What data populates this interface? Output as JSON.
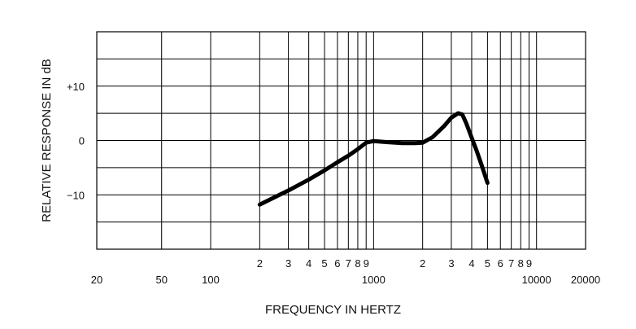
{
  "chart_data": {
    "type": "line",
    "title": "",
    "xlabel": "FREQUENCY IN HERTZ",
    "ylabel": "RELATIVE RESPONSE IN dB",
    "x_scale": "log",
    "xlim": [
      20,
      20000
    ],
    "ylim": [
      -20,
      20
    ],
    "grid": true,
    "x_grid_lines": [
      50,
      100,
      200,
      300,
      400,
      500,
      600,
      700,
      800,
      900,
      1000,
      2000,
      3000,
      4000,
      5000,
      6000,
      7000,
      8000,
      9000,
      10000
    ],
    "y_grid_lines": [
      -15,
      -10,
      -5,
      0,
      5,
      10,
      15
    ],
    "x_ticks_major": [
      {
        "value": 20,
        "label": "20"
      },
      {
        "value": 50,
        "label": "50"
      },
      {
        "value": 100,
        "label": "100"
      },
      {
        "value": 1000,
        "label": "1000"
      },
      {
        "value": 10000,
        "label": "10000"
      },
      {
        "value": 20000,
        "label": "20000"
      }
    ],
    "x_ticks_minor": [
      {
        "value": 200,
        "label": "2"
      },
      {
        "value": 300,
        "label": "3"
      },
      {
        "value": 400,
        "label": "4"
      },
      {
        "value": 500,
        "label": "5"
      },
      {
        "value": 600,
        "label": "6"
      },
      {
        "value": 700,
        "label": "7"
      },
      {
        "value": 800,
        "label": "8"
      },
      {
        "value": 900,
        "label": "9"
      },
      {
        "value": 2000,
        "label": "2"
      },
      {
        "value": 3000,
        "label": "3"
      },
      {
        "value": 4000,
        "label": "4"
      },
      {
        "value": 5000,
        "label": "5"
      },
      {
        "value": 6000,
        "label": "6"
      },
      {
        "value": 7000,
        "label": "7"
      },
      {
        "value": 8000,
        "label": "8"
      },
      {
        "value": 9000,
        "label": "9"
      }
    ],
    "y_ticks": [
      {
        "value": 10,
        "label": "+10"
      },
      {
        "value": 0,
        "label": "0"
      },
      {
        "value": -10,
        "label": "−10"
      }
    ],
    "series": [
      {
        "x": [
          200,
          300,
          400,
          500,
          600,
          700,
          800,
          900,
          1000,
          1200,
          1500,
          1800,
          2000,
          2300,
          2700,
          3000,
          3300,
          3500,
          3700,
          4000,
          4300,
          4600,
          5000
        ],
        "y": [
          -11.8,
          -9.2,
          -7.2,
          -5.5,
          -4.0,
          -2.8,
          -1.6,
          -0.4,
          -0.1,
          -0.3,
          -0.5,
          -0.5,
          -0.4,
          0.6,
          2.6,
          4.2,
          5.0,
          4.8,
          3.2,
          0.5,
          -2.0,
          -4.5,
          -7.8
        ]
      }
    ]
  }
}
